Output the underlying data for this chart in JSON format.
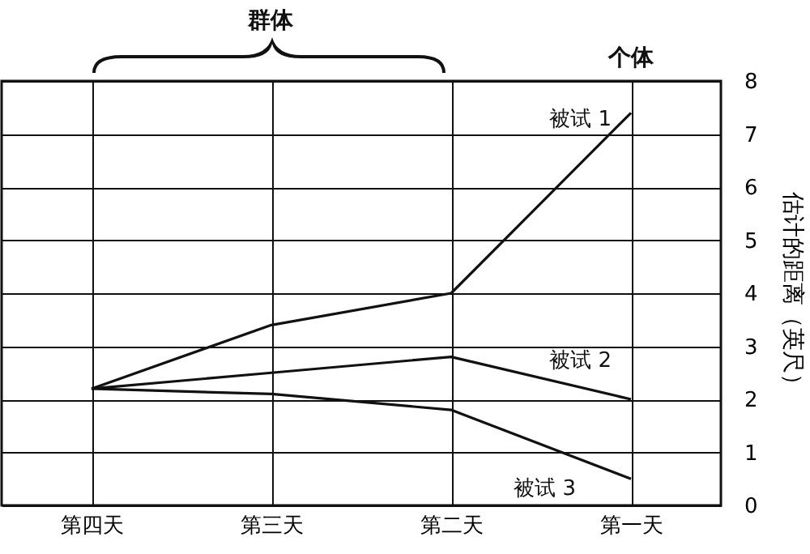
{
  "chart_data": {
    "type": "line",
    "ylabel": "估计的距离（英尺）",
    "categories": [
      "第四天",
      "第三天",
      "第二天",
      "第一天"
    ],
    "series": [
      {
        "name": "被试 1",
        "color": "#111111",
        "values": [
          2.2,
          3.4,
          4.0,
          7.4
        ]
      },
      {
        "name": "被试 2",
        "color": "#111111",
        "values": [
          2.2,
          2.5,
          2.8,
          2.0
        ]
      },
      {
        "name": "被试 3",
        "color": "#111111",
        "values": [
          2.2,
          2.1,
          1.8,
          0.5
        ]
      }
    ],
    "annotations": [
      "群体",
      "个体"
    ],
    "ylim": [
      0,
      8
    ],
    "yticks": [
      0,
      1,
      2,
      3,
      4,
      5,
      6,
      7,
      8
    ],
    "grid": true,
    "legend": false,
    "marker": "none",
    "line_style": "solid"
  }
}
